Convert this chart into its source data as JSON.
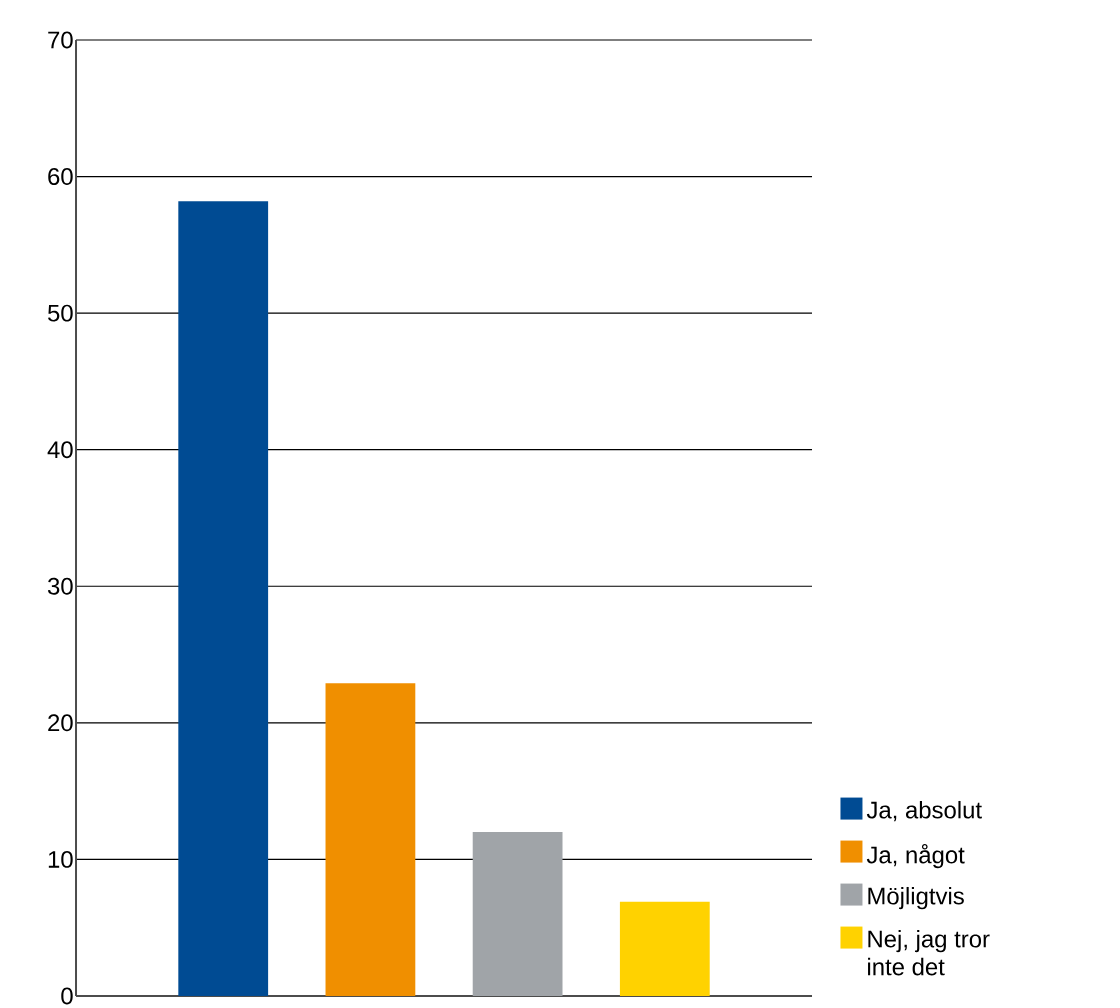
{
  "chart_data": {
    "type": "bar",
    "categories": [
      null,
      null,
      null,
      null
    ],
    "series": [
      {
        "name": "Ja, absolut",
        "color": "#004b93",
        "values": [
          58.2,
          null,
          null,
          null
        ]
      },
      {
        "name": "Ja, något",
        "color": "#f08f00",
        "values": [
          null,
          22.9,
          null,
          null
        ]
      },
      {
        "name": "Möjligtvis",
        "color": "#a0a4a8",
        "values": [
          null,
          null,
          12.0,
          null
        ]
      },
      {
        "name": "Nej, jag tror inte det",
        "color": "#ffd200",
        "values": [
          null,
          null,
          null,
          6.9
        ]
      }
    ],
    "ylim": [
      0,
      70
    ],
    "yticks": [
      0,
      10,
      20,
      30,
      40,
      50,
      60,
      70
    ],
    "grid": "y",
    "legend": "bottom right",
    "tick_labels": "y"
  }
}
